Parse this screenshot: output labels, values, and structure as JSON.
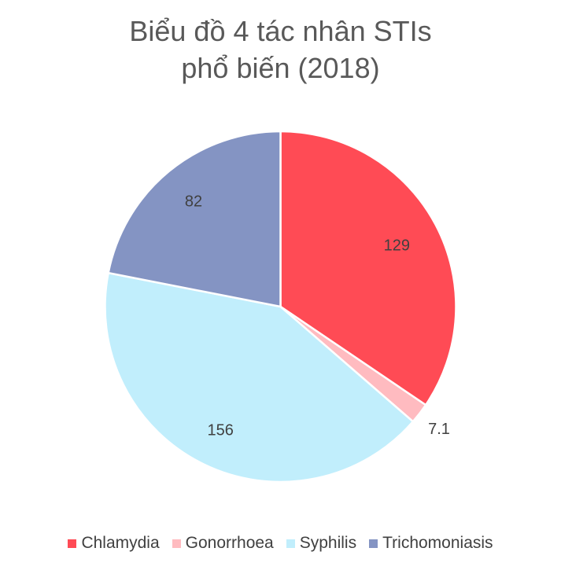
{
  "chart_data": {
    "type": "pie",
    "title_lines": [
      "Biểu đồ 4 tác nhân STIs",
      "phổ biến (2018)"
    ],
    "categories": [
      "Chlamydia",
      "Gonorrhoea",
      "Syphilis",
      "Trichomoniasis"
    ],
    "values": [
      129,
      7.1,
      156,
      82
    ],
    "value_labels": [
      "129",
      "7.1",
      "156",
      "82"
    ],
    "colors": [
      "#FF4B55",
      "#FFBBC0",
      "#C1EEFC",
      "#8494C3"
    ],
    "legend_position": "bottom"
  }
}
